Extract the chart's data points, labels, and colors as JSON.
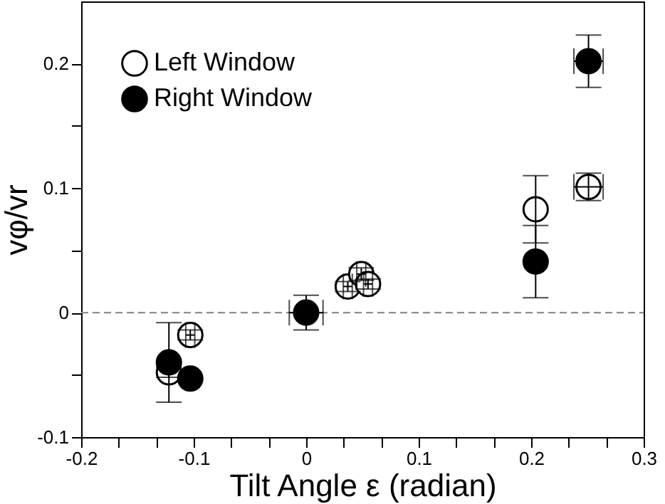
{
  "chart_data": {
    "type": "scatter",
    "xlabel": "Tilt Angle ε (radian)",
    "ylabel": "vφ/vr",
    "xlim": [
      -0.2,
      0.3
    ],
    "ylim": [
      -0.1,
      0.25
    ],
    "xticks": [
      -0.2,
      {
        "value": -0.1667,
        "label": null
      },
      {
        "value": -0.1333,
        "label": null
      },
      -0.1,
      {
        "value": -0.0667,
        "label": null
      },
      {
        "value": -0.0333,
        "label": null
      },
      0,
      {
        "value": 0.0333,
        "label": null
      },
      {
        "value": 0.0667,
        "label": null
      },
      0.1,
      {
        "value": 0.1333,
        "label": null
      },
      {
        "value": 0.1667,
        "label": null
      },
      0.2,
      {
        "value": 0.2333,
        "label": null
      },
      {
        "value": 0.2667,
        "label": null
      },
      0.3
    ],
    "yticks": [
      -0.1,
      {
        "value": -0.05,
        "label": null
      },
      0,
      {
        "value": 0.05,
        "label": null
      },
      0.1,
      {
        "value": 0.15,
        "label": null
      },
      0.2
    ],
    "marker": "circle",
    "grid": false,
    "legend": "top left",
    "ref_lines": [
      {
        "axis": "y",
        "value": 0,
        "label": null,
        "color": "#808080",
        "line_style": "dashed"
      }
    ],
    "series": [
      {
        "name": "Left Window",
        "color": "#ffffff",
        "x": [
          0.251,
          0.204,
          0.037,
          0.049,
          0.055,
          -0.103,
          -0.122
        ],
        "values": [
          0.101,
          0.083,
          0.021,
          0.031,
          0.023,
          -0.018,
          -0.048
        ],
        "errors": [
          0.011,
          0.027,
          0.004,
          0.005,
          0.004,
          0.004,
          0.004
        ],
        "xerrors": [
          0.013,
          null,
          0.004,
          0.004,
          0.004,
          0.004,
          null
        ]
      },
      {
        "name": "Right Window",
        "color": "#000000",
        "x": [
          0.251,
          0.204,
          0.0,
          -0.122,
          -0.103
        ],
        "values": [
          0.202,
          0.041,
          0.0,
          -0.04,
          -0.053
        ],
        "errors": [
          0.021,
          0.029,
          0.014,
          0.032,
          null
        ],
        "xerrors": [
          0.013,
          null,
          0.015,
          null,
          null
        ]
      }
    ]
  }
}
